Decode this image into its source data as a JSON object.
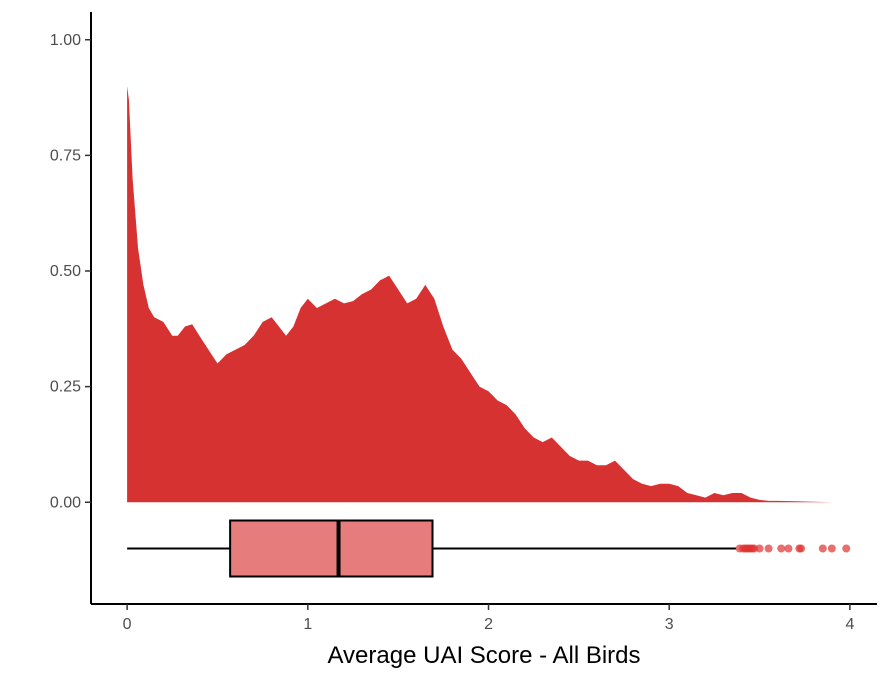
{
  "chart_data": {
    "type": "area",
    "title": "",
    "xlabel": "Average UAI Score - All Birds",
    "ylabel": "",
    "xlim": [
      -0.2,
      4.15
    ],
    "ylim": [
      -0.22,
      1.06
    ],
    "x_ticks": [
      {
        "value": 0,
        "label": "0"
      },
      {
        "value": 1,
        "label": "1"
      },
      {
        "value": 2,
        "label": "2"
      },
      {
        "value": 3,
        "label": "3"
      },
      {
        "value": 4,
        "label": "4"
      }
    ],
    "y_ticks": [
      {
        "value": 0,
        "label": "0.00"
      },
      {
        "value": 0.25,
        "label": "0.25"
      },
      {
        "value": 0.5,
        "label": "0.50"
      },
      {
        "value": 0.75,
        "label": "0.75"
      },
      {
        "value": 1,
        "label": "1.00"
      }
    ],
    "grid": false,
    "colors": {
      "density_fill": "#d63232",
      "box_fill": "#e67c7c",
      "outlier": "#e03030",
      "line": "#000000",
      "axis": "#000000"
    },
    "density": {
      "x": [
        0,
        0.01,
        0.03,
        0.06,
        0.09,
        0.12,
        0.15,
        0.2,
        0.25,
        0.28,
        0.32,
        0.36,
        0.4,
        0.45,
        0.5,
        0.55,
        0.6,
        0.65,
        0.7,
        0.75,
        0.8,
        0.84,
        0.88,
        0.92,
        0.96,
        1.0,
        1.05,
        1.1,
        1.15,
        1.2,
        1.25,
        1.3,
        1.35,
        1.4,
        1.45,
        1.5,
        1.55,
        1.6,
        1.65,
        1.7,
        1.75,
        1.8,
        1.85,
        1.9,
        1.95,
        2.0,
        2.05,
        2.1,
        2.15,
        2.2,
        2.25,
        2.3,
        2.35,
        2.4,
        2.45,
        2.5,
        2.55,
        2.6,
        2.65,
        2.7,
        2.75,
        2.8,
        2.85,
        2.9,
        2.95,
        3.0,
        3.05,
        3.1,
        3.15,
        3.2,
        3.25,
        3.3,
        3.35,
        3.4,
        3.45,
        3.5,
        3.55,
        3.6,
        3.7,
        3.8,
        3.9,
        3.98
      ],
      "y": [
        0.9,
        0.87,
        0.7,
        0.55,
        0.47,
        0.42,
        0.4,
        0.39,
        0.36,
        0.36,
        0.38,
        0.385,
        0.36,
        0.33,
        0.3,
        0.32,
        0.33,
        0.34,
        0.36,
        0.39,
        0.4,
        0.38,
        0.36,
        0.38,
        0.42,
        0.44,
        0.42,
        0.43,
        0.44,
        0.43,
        0.435,
        0.45,
        0.46,
        0.48,
        0.49,
        0.46,
        0.43,
        0.44,
        0.47,
        0.44,
        0.38,
        0.33,
        0.31,
        0.28,
        0.25,
        0.24,
        0.22,
        0.21,
        0.19,
        0.16,
        0.14,
        0.13,
        0.14,
        0.12,
        0.1,
        0.09,
        0.09,
        0.08,
        0.08,
        0.09,
        0.07,
        0.05,
        0.04,
        0.035,
        0.04,
        0.04,
        0.035,
        0.02,
        0.015,
        0.01,
        0.02,
        0.015,
        0.02,
        0.02,
        0.01,
        0.005,
        0.003,
        0.003,
        0.002,
        0.001,
        0.0,
        0.0
      ]
    },
    "boxplot": {
      "y_position": -0.1,
      "whisker_low": 0,
      "q1": 0.57,
      "median": 1.17,
      "q3": 1.69,
      "whisker_high": 3.37,
      "outliers": [
        3.39,
        3.41,
        3.42,
        3.43,
        3.44,
        3.45,
        3.46,
        3.47,
        3.5,
        3.55,
        3.62,
        3.66,
        3.72,
        3.73,
        3.85,
        3.9,
        3.98
      ]
    }
  }
}
